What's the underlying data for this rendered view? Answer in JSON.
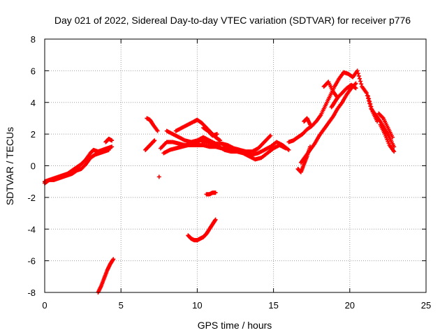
{
  "chart_data": {
    "type": "scatter",
    "title": "Day 021 of 2022, Sidereal Day-to-day VTEC variation (SDTVAR) for receiver p776",
    "xlabel": "GPS time / hours",
    "ylabel": "SDTVAR / TECUs",
    "xlim": [
      0,
      25
    ],
    "ylim": [
      -8,
      8
    ],
    "xticks": [
      "0",
      "5",
      "10",
      "15",
      "20",
      "25"
    ],
    "yticks": [
      "-8",
      "-6",
      "-4",
      "-2",
      "0",
      "2",
      "4",
      "6",
      "8"
    ],
    "grid": true,
    "marker": "plus",
    "colors": {
      "series": "#ff0000",
      "grid": "#a0a0a0",
      "axis": "#000000"
    },
    "series": [
      {
        "name": "SDTVAR",
        "segments": [
          {
            "x": [
              0.0,
              0.3,
              0.6,
              0.9,
              1.2,
              1.5,
              1.8,
              2.1,
              2.4,
              2.7,
              3.0,
              3.2,
              3.5,
              3.8,
              4.1,
              4.4
            ],
            "y": [
              -1.0,
              -0.9,
              -0.8,
              -0.7,
              -0.6,
              -0.5,
              -0.3,
              -0.1,
              0.1,
              0.4,
              0.8,
              1.0,
              0.9,
              1.0,
              1.1,
              1.2
            ]
          },
          {
            "x": [
              0.0,
              0.3,
              0.6,
              0.9,
              1.2,
              1.5,
              1.8,
              2.1,
              2.4,
              2.7,
              3.0,
              3.3,
              3.6,
              3.9,
              4.2
            ],
            "y": [
              -1.1,
              -0.9,
              -0.9,
              -0.8,
              -0.7,
              -0.6,
              -0.5,
              -0.3,
              -0.2,
              0.1,
              0.5,
              0.7,
              0.8,
              0.9,
              1.0
            ]
          },
          {
            "x": [
              4.0,
              4.2,
              4.4
            ],
            "y": [
              1.5,
              1.7,
              1.6
            ]
          },
          {
            "x": [
              3.5,
              3.7,
              3.9,
              4.1,
              4.3,
              4.5
            ],
            "y": [
              -8.0,
              -7.6,
              -7.1,
              -6.6,
              -6.2,
              -5.9
            ]
          },
          {
            "x": [
              6.6,
              6.8,
              7.0,
              7.2
            ],
            "y": [
              1.0,
              1.2,
              1.4,
              1.6
            ]
          },
          {
            "x": [
              6.7,
              6.9,
              7.1,
              7.4
            ],
            "y": [
              3.0,
              2.9,
              2.6,
              2.2
            ]
          },
          {
            "x": [
              7.5
            ],
            "y": [
              -0.7
            ]
          },
          {
            "x": [
              7.6,
              8.0,
              8.4,
              8.8,
              9.2,
              9.6,
              10.0,
              10.4,
              10.8,
              11.2,
              11.6,
              12.0,
              12.4,
              12.8,
              13.2,
              13.6,
              14.0,
              14.4,
              14.8,
              15.2,
              15.6,
              16.0
            ],
            "y": [
              1.1,
              1.5,
              1.5,
              1.4,
              1.3,
              1.3,
              1.3,
              1.3,
              1.2,
              1.2,
              1.1,
              1.1,
              1.0,
              0.9,
              0.8,
              0.7,
              0.8,
              1.0,
              1.2,
              1.5,
              1.3,
              1.0
            ]
          },
          {
            "x": [
              7.8,
              8.2,
              8.6,
              9.0,
              9.4,
              9.8,
              10.2,
              10.6,
              11.0,
              11.4,
              11.8,
              12.2,
              12.6,
              13.0,
              13.4,
              13.8,
              14.2,
              14.6,
              15.0,
              15.4,
              15.8
            ],
            "y": [
              0.8,
              1.0,
              1.1,
              1.2,
              1.3,
              1.4,
              1.6,
              1.5,
              1.4,
              1.2,
              1.0,
              0.9,
              0.9,
              0.8,
              0.6,
              0.4,
              0.5,
              0.8,
              1.1,
              1.3,
              1.1
            ]
          },
          {
            "x": [
              8.0,
              8.4,
              8.8,
              9.2,
              9.6,
              10.0,
              10.4,
              10.8,
              11.2,
              11.6,
              12.0,
              12.4,
              12.8,
              13.2,
              13.6,
              14.0,
              14.4,
              14.8
            ],
            "y": [
              2.2,
              2.0,
              1.8,
              1.6,
              1.5,
              1.6,
              1.8,
              1.6,
              1.4,
              1.4,
              1.3,
              1.1,
              1.0,
              0.9,
              0.9,
              1.1,
              1.5,
              1.9
            ]
          },
          {
            "x": [
              8.6,
              9.0,
              9.4,
              9.8,
              10.0,
              10.3,
              10.6,
              10.9,
              11.2,
              11.5
            ],
            "y": [
              2.2,
              2.4,
              2.6,
              2.8,
              2.9,
              2.7,
              2.4,
              2.1,
              1.8,
              1.6
            ]
          },
          {
            "x": [
              10.4,
              10.7,
              11.0,
              11.3
            ],
            "y": [
              2.4,
              2.2,
              1.9,
              2.0
            ]
          },
          {
            "x": [
              9.4,
              9.6,
              9.8,
              10.0,
              10.2,
              10.4,
              10.6,
              10.8,
              11.0,
              11.2
            ],
            "y": [
              -4.4,
              -4.6,
              -4.7,
              -4.7,
              -4.6,
              -4.5,
              -4.3,
              -4.0,
              -3.7,
              -3.4
            ]
          },
          {
            "x": [
              10.6,
              10.8,
              11.0,
              11.2
            ],
            "y": [
              -1.8,
              -1.8,
              -1.7,
              -1.7
            ]
          },
          {
            "x": [
              16.0,
              16.3,
              16.6,
              16.9,
              17.2,
              17.5,
              17.8,
              18.1,
              18.4,
              18.7,
              19.0,
              19.3,
              19.6,
              19.9,
              20.2,
              20.5,
              20.8,
              21.1,
              21.4,
              21.7,
              22.0,
              22.3,
              22.6,
              22.9
            ],
            "y": [
              1.5,
              1.6,
              1.8,
              2.0,
              2.3,
              2.5,
              2.8,
              3.2,
              3.8,
              4.4,
              5.0,
              5.5,
              5.9,
              5.8,
              5.6,
              6.0,
              5.0,
              4.6,
              3.6,
              3.2,
              2.8,
              2.3,
              1.8,
              1.2
            ]
          },
          {
            "x": [
              16.8,
              17.1,
              17.4,
              17.7,
              18.0,
              18.3,
              18.6,
              18.9,
              19.2,
              19.5,
              19.8,
              20.1,
              20.4
            ],
            "y": [
              0.2,
              0.6,
              1.0,
              1.4,
              1.9,
              2.3,
              2.7,
              3.1,
              3.6,
              4.0,
              4.5,
              4.9,
              5.2
            ]
          },
          {
            "x": [
              16.6,
              16.8,
              17.0,
              17.2,
              17.4
            ],
            "y": [
              -0.2,
              -0.4,
              0.1,
              0.6,
              1.2
            ]
          },
          {
            "x": [
              17.0,
              17.2,
              17.4
            ],
            "y": [
              2.8,
              3.0,
              2.6
            ]
          },
          {
            "x": [
              18.3,
              18.6,
              18.9,
              19.2,
              19.5,
              19.8,
              20.1,
              20.4
            ],
            "y": [
              5.0,
              5.3,
              4.7,
              4.3,
              4.6,
              4.9,
              5.1,
              4.9
            ]
          },
          {
            "x": [
              18.8,
              19.0,
              19.2
            ],
            "y": [
              3.7,
              4.0,
              4.3
            ]
          },
          {
            "x": [
              21.2,
              21.5,
              21.8
            ],
            "y": [
              4.4,
              3.4,
              2.8
            ]
          },
          {
            "x": [
              21.9,
              22.2,
              22.5,
              22.8
            ],
            "y": [
              3.3,
              3.0,
              2.4,
              1.8
            ]
          },
          {
            "x": [
              22.0,
              22.3,
              22.6,
              22.9
            ],
            "y": [
              2.6,
              2.0,
              1.3,
              0.9
            ]
          }
        ]
      }
    ]
  }
}
